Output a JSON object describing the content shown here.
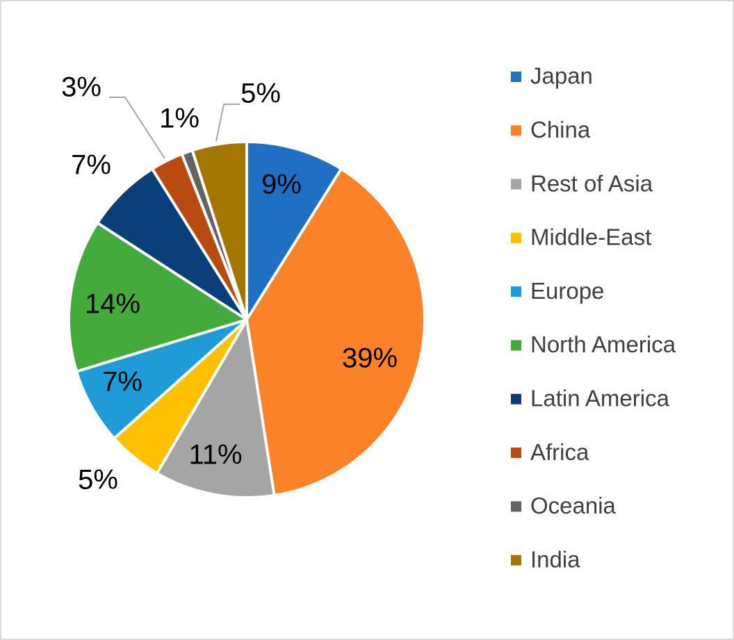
{
  "chart_data": {
    "type": "pie",
    "categories": [
      "Japan",
      "China",
      "Rest of Asia",
      "Middle-East",
      "Europe",
      "North America",
      "Latin America",
      "Africa",
      "Oceania",
      "India"
    ],
    "values": [
      9,
      39,
      11,
      5,
      7,
      14,
      7,
      3,
      1,
      5
    ],
    "value_labels": [
      "9%",
      "39%",
      "11%",
      "5%",
      "7%",
      "14%",
      "7%",
      "3%",
      "1%",
      "5%"
    ],
    "colors": [
      "#1f6fc5",
      "#fb8227",
      "#a5a5a5",
      "#ffc000",
      "#1f9bd8",
      "#44aa3c",
      "#0b3f7a",
      "#b84b0f",
      "#636363",
      "#a27600"
    ],
    "legend": "right"
  }
}
